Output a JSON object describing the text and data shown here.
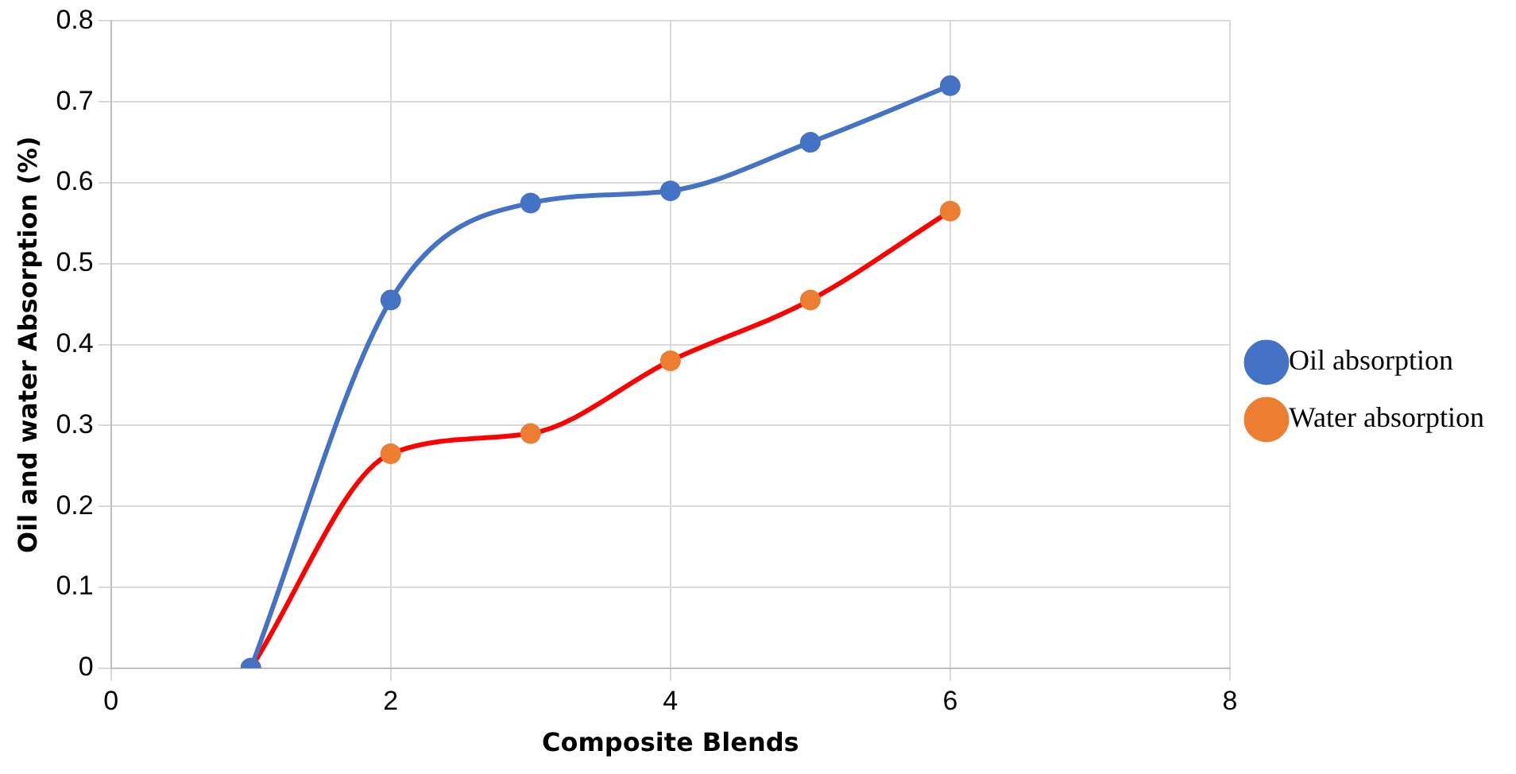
{
  "chart_data": {
    "type": "line",
    "xlabel": "Composite Blends",
    "ylabel": "Oil and water Absorption (%)",
    "x": [
      1,
      2,
      3,
      4,
      5,
      6
    ],
    "series": [
      {
        "name": "Oil absorption",
        "color": "#4472c4",
        "values": [
          0,
          0.455,
          0.575,
          0.59,
          0.65,
          0.72
        ]
      },
      {
        "name": "Water absorption",
        "color": "#ff0000",
        "colors": [
          "#ed7d31",
          "#ed7d31",
          "#ed7d31",
          "#ed7d31",
          "#ed7d31",
          "#ed7d31"
        ],
        "values": [
          0,
          0.265,
          0.29,
          0.38,
          0.455,
          0.565
        ]
      }
    ],
    "xlim": [
      0,
      8
    ],
    "xticks": [
      0,
      2,
      4,
      6,
      8
    ],
    "ylim": [
      0,
      0.8
    ],
    "yticks": [
      0,
      0.1,
      0.2,
      0.3,
      0.4,
      0.5,
      0.6,
      0.7,
      0.8
    ],
    "grid": true,
    "legend": "right",
    "marker": "circle",
    "line_style": "solid"
  }
}
